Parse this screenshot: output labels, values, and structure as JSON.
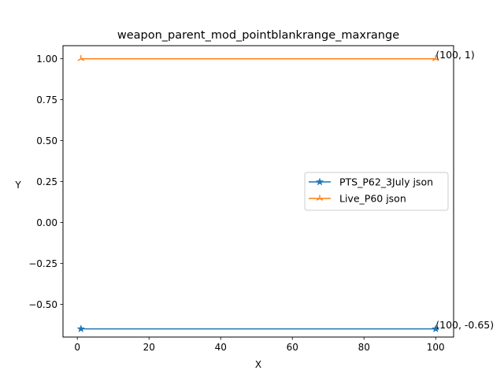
{
  "chart_data": {
    "type": "line",
    "title": "weapon_parent_mod_pointblankrange_maxrange",
    "xlabel": "X",
    "ylabel": "Y",
    "xlim": [
      -4,
      105
    ],
    "ylim": [
      -0.7,
      1.08
    ],
    "xticks": [
      0,
      20,
      40,
      60,
      80,
      100
    ],
    "xtick_labels": [
      "0",
      "20",
      "40",
      "60",
      "80",
      "100"
    ],
    "yticks": [
      -0.5,
      -0.25,
      0.0,
      0.25,
      0.5,
      0.75,
      1.0
    ],
    "ytick_labels": [
      "−0.50",
      "−0.25",
      "0.00",
      "0.25",
      "0.50",
      "0.75",
      "1.00"
    ],
    "grid": false,
    "legend_position": "center-right",
    "series": [
      {
        "name": "PTS_P62_3July json",
        "color": "#1f77b4",
        "marker": "star",
        "x": [
          1,
          100
        ],
        "y": [
          -0.65,
          -0.65
        ]
      },
      {
        "name": "Live_P60 json",
        "color": "#ff7f0e",
        "marker": "tri",
        "x": [
          1,
          100
        ],
        "y": [
          1,
          1
        ]
      }
    ],
    "annotations": [
      {
        "text": "(100, 1)",
        "x": 100,
        "y": 1
      },
      {
        "text": "(100, -0.65)",
        "x": 100,
        "y": -0.65
      }
    ]
  }
}
